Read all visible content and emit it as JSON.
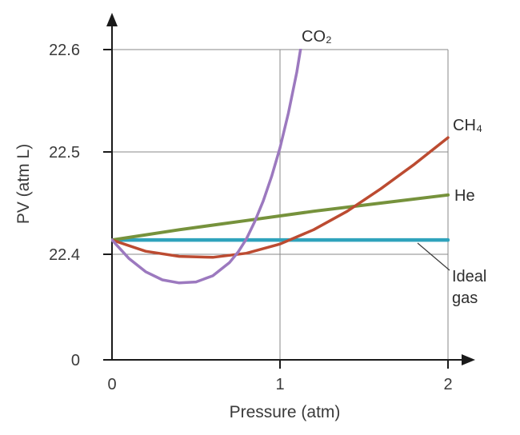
{
  "chart_data": {
    "type": "line",
    "title": "",
    "xlabel": "Pressure (atm)",
    "ylabel": "PV (atm L)",
    "xlim": [
      0,
      2
    ],
    "ylim": [
      22.4,
      22.6
    ],
    "y_axis_break_label": "0",
    "x_tick_labels": [
      "0",
      "1",
      "2"
    ],
    "y_tick_labels": [
      "22.6",
      "22.5",
      "22.4"
    ],
    "x_ticks": [
      0,
      1,
      2
    ],
    "y_ticks": [
      22.6,
      22.5,
      22.4
    ],
    "grid": true,
    "legend_position": "labels-on-curves",
    "axis_color": "#1a1a1a",
    "grid_color": "#8a8a8a",
    "series": [
      {
        "id": "ideal",
        "label": "Ideal gas",
        "color": "#2fa3bc",
        "width": 4.5,
        "points": [
          [
            0,
            22.414
          ],
          [
            2,
            22.414
          ]
        ]
      },
      {
        "id": "he",
        "label": "He",
        "color": "#76923c",
        "width": 4,
        "points": [
          [
            0,
            22.414
          ],
          [
            0.4,
            22.424
          ],
          [
            0.8,
            22.433
          ],
          [
            1.2,
            22.442
          ],
          [
            1.6,
            22.45
          ],
          [
            2.0,
            22.458
          ]
        ]
      },
      {
        "id": "ch4",
        "label": "CH₄",
        "color": "#bc4b31",
        "width": 3.5,
        "points": [
          [
            0,
            22.414
          ],
          [
            0.2,
            22.403
          ],
          [
            0.4,
            22.398
          ],
          [
            0.6,
            22.397
          ],
          [
            0.8,
            22.401
          ],
          [
            1.0,
            22.41
          ],
          [
            1.2,
            22.424
          ],
          [
            1.4,
            22.442
          ],
          [
            1.6,
            22.464
          ],
          [
            1.8,
            22.488
          ],
          [
            2.0,
            22.514
          ]
        ]
      },
      {
        "id": "co2",
        "label": "CO₂",
        "color": "#9c79bf",
        "width": 3.5,
        "points": [
          [
            0,
            22.414
          ],
          [
            0.1,
            22.396
          ],
          [
            0.2,
            22.383
          ],
          [
            0.3,
            22.375
          ],
          [
            0.4,
            22.372
          ],
          [
            0.5,
            22.373
          ],
          [
            0.6,
            22.379
          ],
          [
            0.7,
            22.392
          ],
          [
            0.75,
            22.402
          ],
          [
            0.8,
            22.415
          ],
          [
            0.85,
            22.432
          ],
          [
            0.9,
            22.452
          ],
          [
            0.95,
            22.476
          ],
          [
            1.0,
            22.504
          ],
          [
            1.05,
            22.538
          ],
          [
            1.1,
            22.578
          ],
          [
            1.15,
            22.628
          ]
        ]
      }
    ],
    "annotations": {
      "ideal_line1": "Ideal",
      "ideal_line2": "gas"
    }
  }
}
